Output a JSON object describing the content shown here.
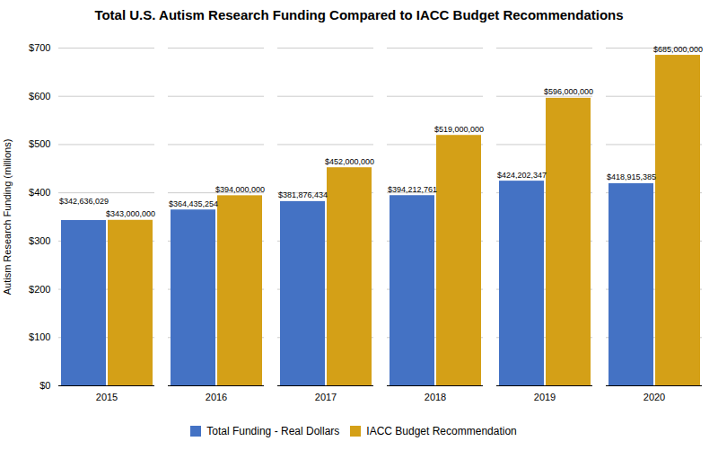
{
  "chart_data": {
    "type": "bar",
    "title": "Total U.S. Autism Research Funding Compared to IACC Budget Recommendations",
    "categories": [
      "2015",
      "2016",
      "2017",
      "2018",
      "2019",
      "2020"
    ],
    "series": [
      {
        "name": "Total Funding - Real Dollars",
        "color": "#4472C4",
        "values": [
          342636029,
          364435254,
          381876434,
          394212761,
          424202347,
          418915385
        ],
        "value_labels": [
          "$342,636,029",
          "$364,435,254",
          "$381,876,434",
          "$394,212,761",
          "$424,202,347",
          "$418,915,385"
        ]
      },
      {
        "name": "IACC Budget Recommendation",
        "color": "#D4A017",
        "values": [
          343000000,
          394000000,
          452000000,
          519000000,
          596000000,
          685000000
        ],
        "value_labels": [
          "$343,000,000",
          "$394,000,000",
          "$452,000,000",
          "$519,000,000",
          "$596,000,000",
          "$685,000,000"
        ]
      }
    ],
    "ylabel": "Autism Research Funding (millions)",
    "ylim": [
      0,
      700000000
    ],
    "yticks": [
      {
        "value": 0,
        "label": "$0"
      },
      {
        "value": 100000000,
        "label": "$100"
      },
      {
        "value": 200000000,
        "label": "$200"
      },
      {
        "value": 300000000,
        "label": "$300"
      },
      {
        "value": 400000000,
        "label": "$400"
      },
      {
        "value": 500000000,
        "label": "$500"
      },
      {
        "value": 600000000,
        "label": "$600"
      },
      {
        "value": 700000000,
        "label": "$700"
      }
    ],
    "grid": true,
    "legend": "bottom",
    "data_labels": true
  }
}
